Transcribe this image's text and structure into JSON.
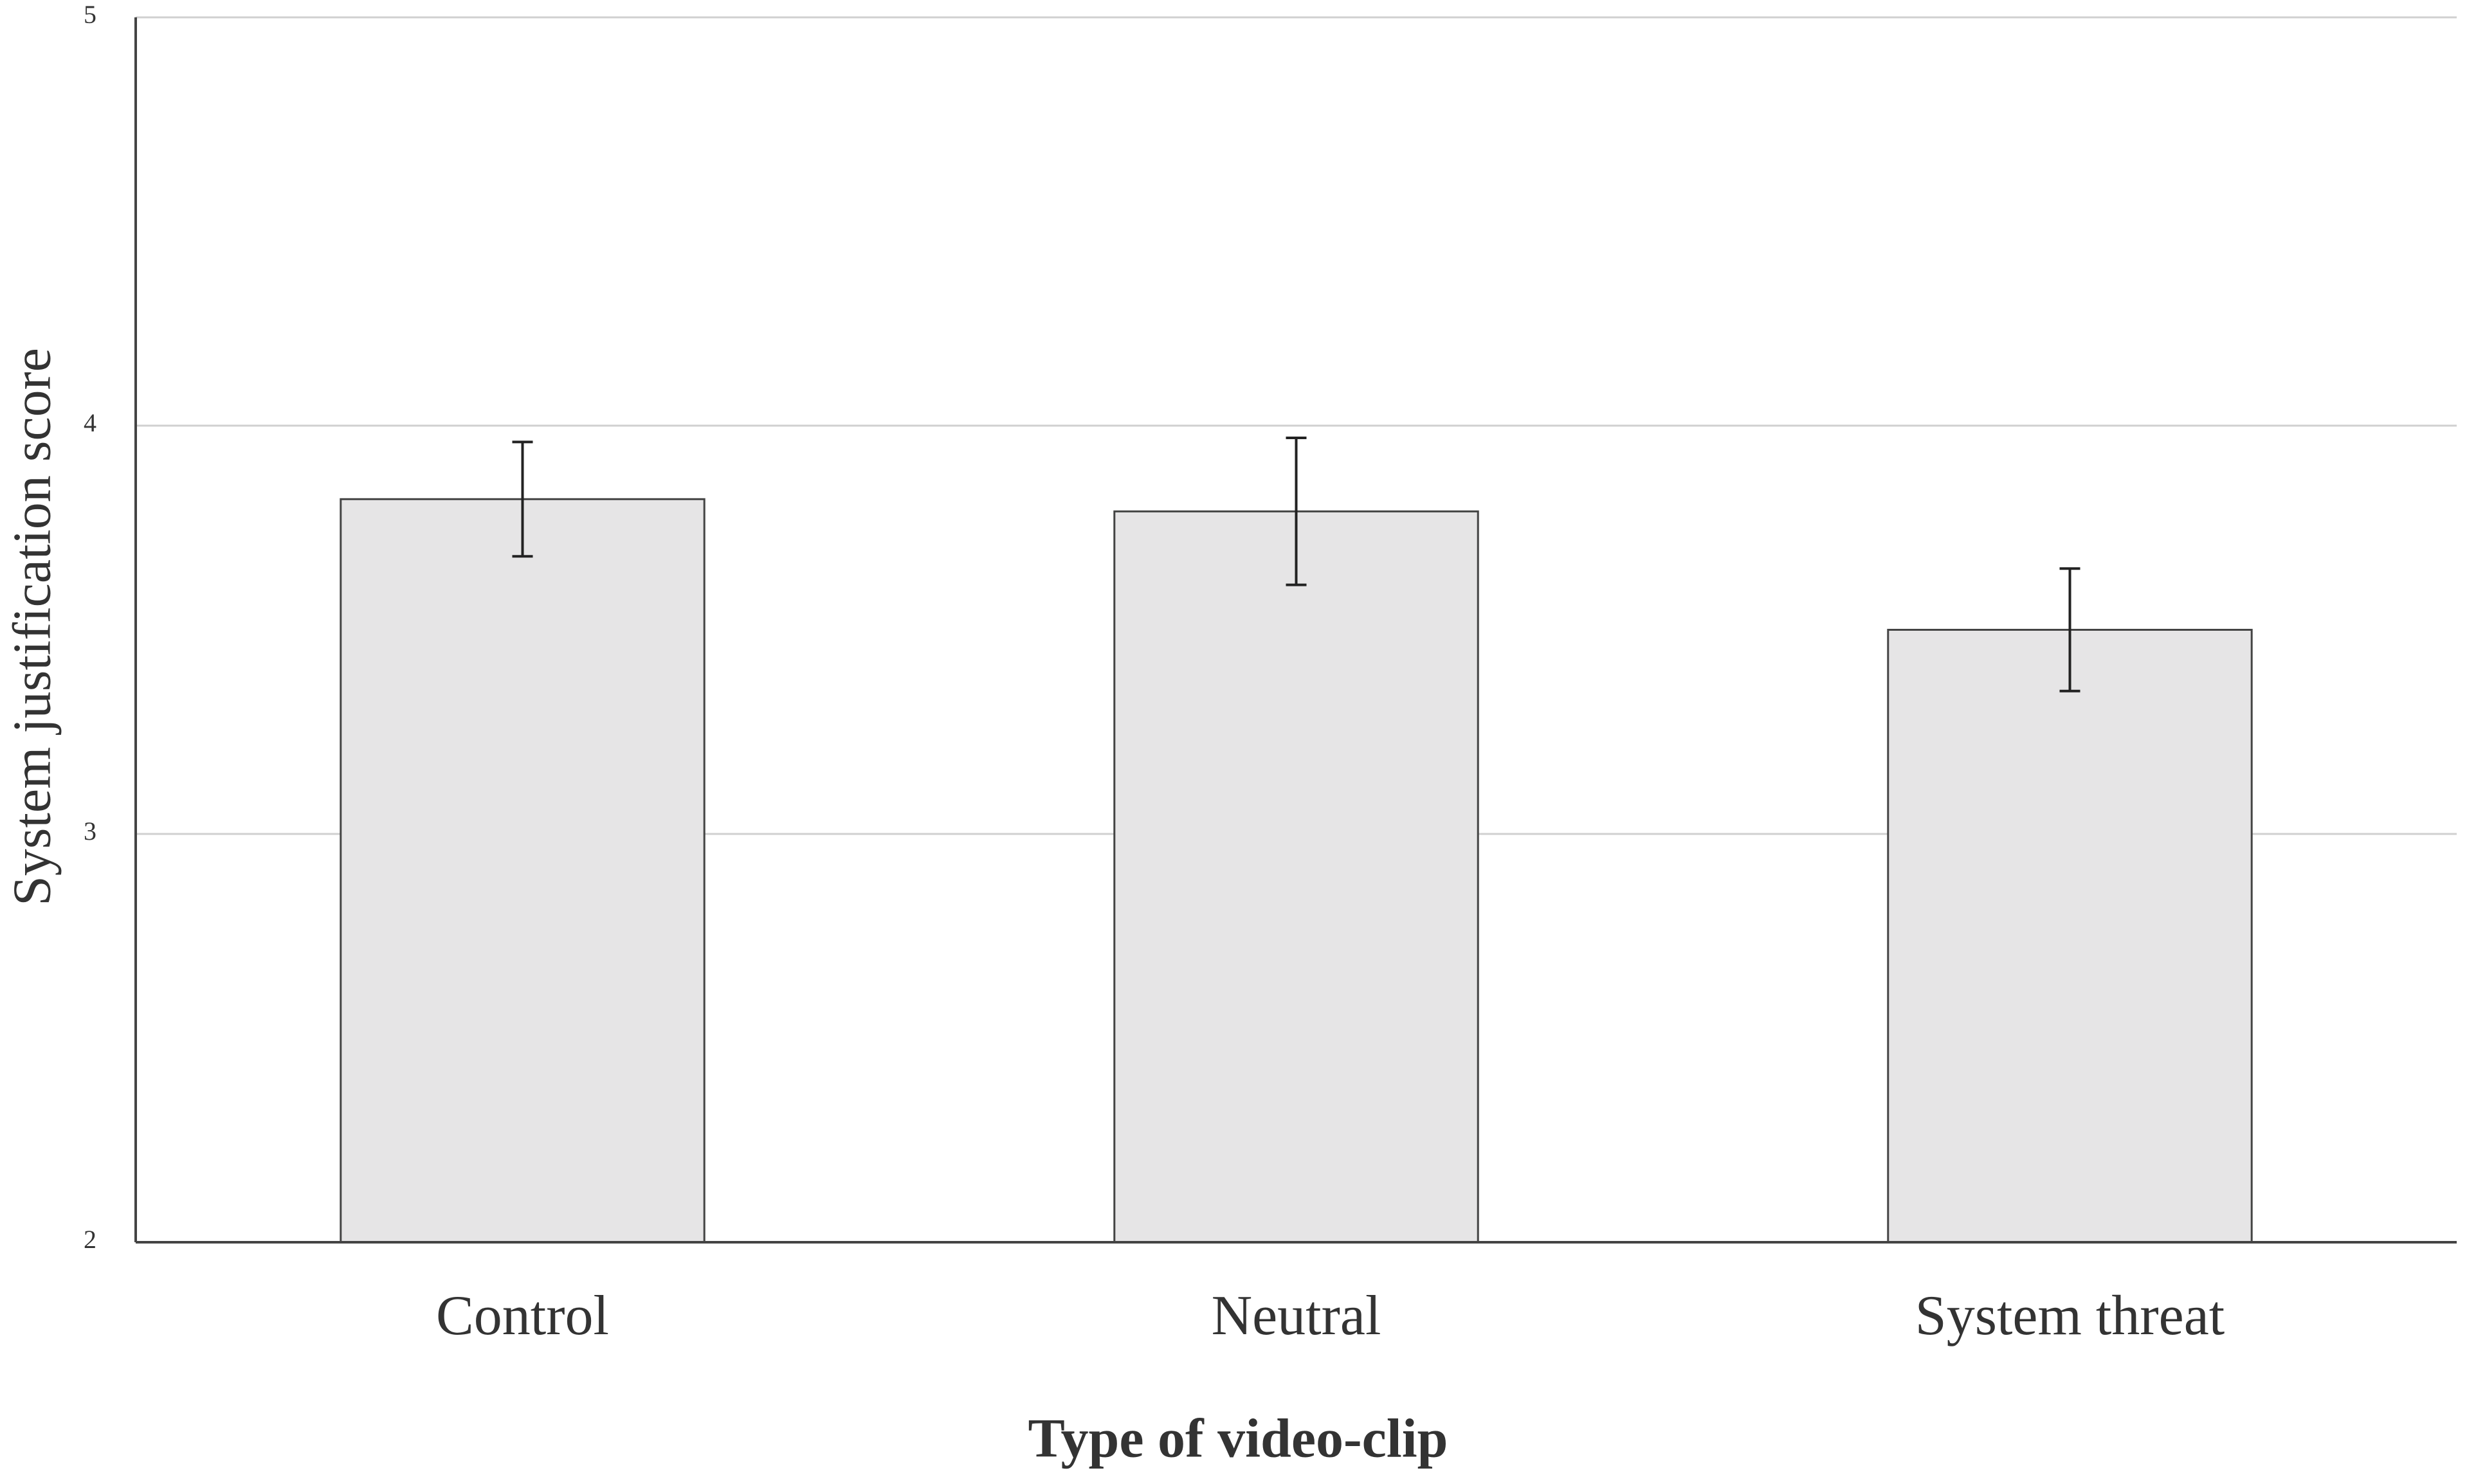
{
  "chart_data": {
    "type": "bar",
    "x_label": "Type  of video-clip",
    "y_label": "System justification score",
    "categories": [
      "Control",
      "Neutral",
      "System threat"
    ],
    "values": [
      3.82,
      3.79,
      3.5
    ],
    "errors": [
      0.14,
      0.18,
      0.15
    ],
    "color": "#e6e5e6",
    "ylim": [
      2,
      5
    ],
    "yticks": [
      2,
      3,
      4,
      5
    ],
    "grid": true
  }
}
